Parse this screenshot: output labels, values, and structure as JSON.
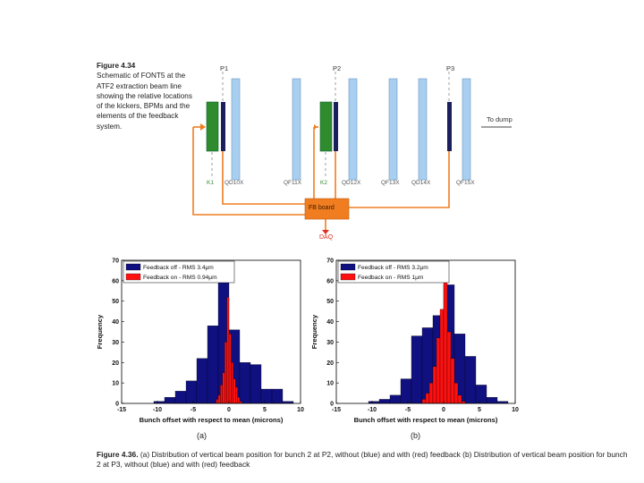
{
  "figure_top": {
    "caption_title": "Figure 4.34",
    "caption_body": "Schematic of FONT5 at the ATF2 extraction beam line showing the relative locations of the kickers, BPMs and the elements of the feedback system.",
    "bpm_labels": [
      "P1",
      "P2",
      "P3"
    ],
    "magnet_labels": [
      "K1",
      "QD10X",
      "QF11X",
      "K2",
      "QD12X",
      "QF13X",
      "QD14X",
      "QF15X"
    ],
    "dump_label": "To dump",
    "board_label": "FB board",
    "daq_label": "DAQ",
    "colors": {
      "kicker": "#2e8b2e",
      "quad": "#a8cff0",
      "bpm": "#1c1f5e",
      "cable": "#f07d20",
      "board": "#f07d20",
      "daq": "#e03020"
    }
  },
  "chart_data": [
    {
      "type": "bar",
      "panel": "(a)",
      "title": "",
      "xlabel": "Bunch offset with respect to mean (microns)",
      "ylabel": "Frequency",
      "xlim": [
        -15,
        10
      ],
      "ylim": [
        0,
        70
      ],
      "xticks": [
        -15,
        -10,
        -5,
        0,
        5,
        10
      ],
      "yticks": [
        0,
        10,
        20,
        30,
        40,
        50,
        60,
        70
      ],
      "legend": {
        "position": "top",
        "entries": [
          "Feedback off - RMS 3.4μm",
          "Feedback on - RMS 0.94μm"
        ]
      },
      "series": [
        {
          "name": "Feedback off - RMS 3.4μm",
          "color": "#101080",
          "bins": [
            [
              -10.5,
              -9,
              1
            ],
            [
              -9,
              -7.5,
              3
            ],
            [
              -7.5,
              -6,
              6
            ],
            [
              -6,
              -4.5,
              11
            ],
            [
              -4.5,
              -3,
              22
            ],
            [
              -3,
              -1.5,
              38
            ],
            [
              -1.5,
              0,
              61
            ],
            [
              0,
              1.5,
              36
            ],
            [
              1.5,
              3,
              20
            ],
            [
              3,
              4.5,
              19
            ],
            [
              4.5,
              6,
              7
            ],
            [
              6,
              7.5,
              7
            ],
            [
              7.5,
              9,
              1
            ]
          ]
        },
        {
          "name": "Feedback on - RMS 0.94μm",
          "color": "#ff1010",
          "bins": [
            [
              -1.8,
              -1.5,
              2
            ],
            [
              -1.5,
              -1.2,
              4
            ],
            [
              -1.2,
              -0.9,
              9
            ],
            [
              -0.9,
              -0.6,
              15
            ],
            [
              -0.6,
              -0.3,
              30
            ],
            [
              -0.3,
              0,
              52
            ],
            [
              0,
              0.3,
              34
            ],
            [
              0.3,
              0.6,
              20
            ],
            [
              0.6,
              0.9,
              12
            ],
            [
              0.9,
              1.2,
              8
            ],
            [
              1.2,
              1.5,
              3
            ],
            [
              1.5,
              1.8,
              1
            ]
          ]
        }
      ]
    },
    {
      "type": "bar",
      "panel": "(b)",
      "title": "",
      "xlabel": "Bunch offset with respect to mean (microns)",
      "ylabel": "Frequency",
      "xlim": [
        -15,
        10
      ],
      "ylim": [
        0,
        70
      ],
      "xticks": [
        -15,
        -10,
        -5,
        0,
        5,
        10
      ],
      "yticks": [
        0,
        10,
        20,
        30,
        40,
        50,
        60,
        70
      ],
      "legend": {
        "position": "top",
        "entries": [
          "Feedback off - RMS 3.2μm",
          "Feedback on - RMS 1μm"
        ]
      },
      "series": [
        {
          "name": "Feedback off - RMS 3.2μm",
          "color": "#101080",
          "bins": [
            [
              -10.5,
              -9,
              1
            ],
            [
              -9,
              -7.5,
              2
            ],
            [
              -7.5,
              -6,
              4
            ],
            [
              -6,
              -4.5,
              12
            ],
            [
              -4.5,
              -3,
              33
            ],
            [
              -3,
              -1.5,
              37
            ],
            [
              -1.5,
              0,
              43
            ],
            [
              0,
              1.5,
              58
            ],
            [
              1.5,
              3,
              34
            ],
            [
              3,
              4.5,
              23
            ],
            [
              4.5,
              6,
              9
            ],
            [
              6,
              7.5,
              3
            ],
            [
              7.5,
              9,
              1
            ]
          ]
        },
        {
          "name": "Feedback on - RMS 1μm",
          "color": "#ff1010",
          "bins": [
            [
              -3,
              -2.5,
              2
            ],
            [
              -2.5,
              -2,
              5
            ],
            [
              -2,
              -1.5,
              10
            ],
            [
              -1.5,
              -1,
              18
            ],
            [
              -1,
              -0.5,
              32
            ],
            [
              -0.5,
              0,
              46
            ],
            [
              0,
              0.5,
              60
            ],
            [
              0.5,
              1,
              35
            ],
            [
              1,
              1.5,
              22
            ],
            [
              1.5,
              2,
              10
            ],
            [
              2,
              2.5,
              4
            ],
            [
              2.5,
              3,
              1
            ]
          ]
        }
      ]
    }
  ],
  "panel_labels": [
    "(a)",
    "(b)"
  ],
  "caption_bottom": {
    "prefix": "Figure 4.36.",
    "text": " (a) Distribution of vertical beam position for bunch 2 at P2, without (blue) and with (red) feedback (b) Distribution of vertical beam position for bunch 2 at P3, without (blue) and with (red) feedback"
  }
}
